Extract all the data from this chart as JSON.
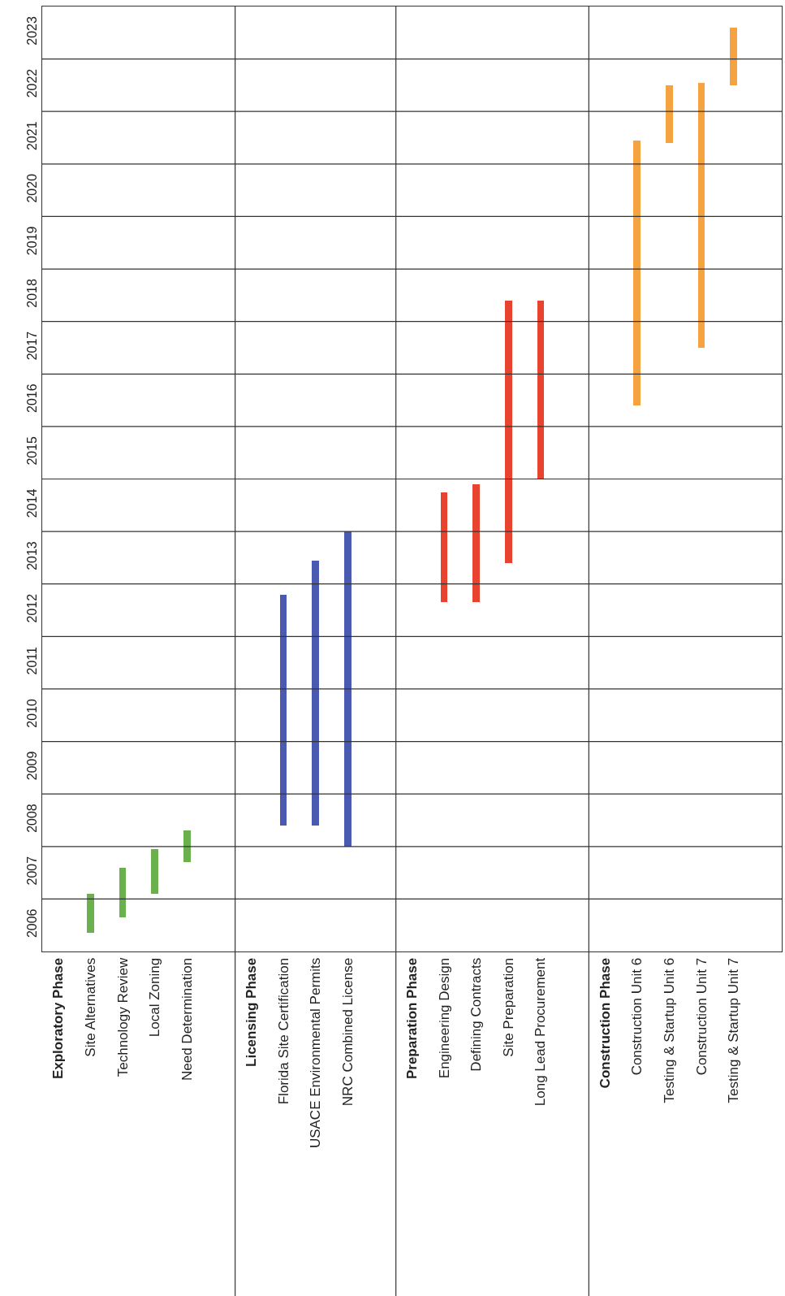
{
  "chart_data": {
    "type": "bar",
    "categories": [
      "Exploratory Phase",
      "Site Alternatives",
      "Technology Review",
      "Local Zoning",
      "Need Determination",
      null,
      "Licensing Phase",
      "Florida Site Certification",
      "USACE Environmental Permits",
      "NRC Combined License",
      null,
      "Preparation Phase",
      "Engineering Design",
      "Defining Contracts",
      "Site Preparation",
      "Long Lead Procurement",
      null,
      "Construction Phase",
      "Construction Unit 6",
      "Testing & Startup Unit 6",
      "Construction Unit 7",
      "Testing & Startup Unit 7",
      null
    ],
    "base": [
      null,
      2006.35,
      2006.65,
      2007.1,
      2007.7,
      null,
      null,
      2008.4,
      2008.4,
      2008.0,
      null,
      null,
      2012.65,
      2012.65,
      2013.4,
      2015.0,
      null,
      null,
      2016.4,
      2021.4,
      2017.5,
      2022.5,
      null
    ],
    "values": [
      null,
      0.75,
      0.95,
      0.85,
      0.6,
      null,
      null,
      4.4,
      5.05,
      6.0,
      null,
      null,
      2.1,
      2.25,
      5.0,
      3.4,
      null,
      null,
      5.05,
      1.1,
      5.05,
      1.1,
      null
    ],
    "colors": [
      "#6ab04c",
      "#6ab04c",
      "#6ab04c",
      "#6ab04c",
      "#6ab04c",
      "#6ab04c",
      "#4a5ab0",
      "#4a5ab0",
      "#4a5ab0",
      "#4a5ab0",
      "#4a5ab0",
      "#e8432e",
      "#e8432e",
      "#e8432e",
      "#e8432e",
      "#e8432e",
      "#e8432e",
      "#f4a340",
      "#f4a340",
      "#f4a340",
      "#f4a340",
      "#f4a340",
      "#f4a340"
    ],
    "ylim": [
      2006,
      2024
    ],
    "yticks": [
      {
        "value": 2006.5,
        "label": "2006"
      },
      {
        "value": 2007,
        "label": null
      },
      {
        "value": 2007.5,
        "label": "2007"
      },
      {
        "value": 2008,
        "label": null
      },
      {
        "value": 2008.5,
        "label": "2008"
      },
      {
        "value": 2009,
        "label": null
      },
      {
        "value": 2009.5,
        "label": "2009"
      },
      {
        "value": 2010,
        "label": null
      },
      {
        "value": 2010.5,
        "label": "2010"
      },
      {
        "value": 2011,
        "label": null
      },
      {
        "value": 2011.5,
        "label": "2011"
      },
      {
        "value": 2012,
        "label": null
      },
      {
        "value": 2012.5,
        "label": "2012"
      },
      {
        "value": 2013,
        "label": null
      },
      {
        "value": 2013.5,
        "label": "2013"
      },
      {
        "value": 2014,
        "label": null
      },
      {
        "value": 2014.5,
        "label": "2014"
      },
      {
        "value": 2015,
        "label": null
      },
      {
        "value": 2015.5,
        "label": "2015"
      },
      {
        "value": 2016,
        "label": null
      },
      {
        "value": 2016.5,
        "label": "2016"
      },
      {
        "value": 2017,
        "label": null
      },
      {
        "value": 2017.5,
        "label": "2017"
      },
      {
        "value": 2018,
        "label": null
      },
      {
        "value": 2018.5,
        "label": "2018"
      },
      {
        "value": 2019,
        "label": null
      },
      {
        "value": 2019.5,
        "label": "2019"
      },
      {
        "value": 2020,
        "label": null
      },
      {
        "value": 2020.5,
        "label": "2020"
      },
      {
        "value": 2021,
        "label": null
      },
      {
        "value": 2021.5,
        "label": "2021"
      },
      {
        "value": 2022,
        "label": null
      },
      {
        "value": 2022.5,
        "label": "2022"
      },
      {
        "value": 2023,
        "label": null
      },
      {
        "value": 2023.5,
        "label": "2023"
      }
    ],
    "grid": "y"
  }
}
